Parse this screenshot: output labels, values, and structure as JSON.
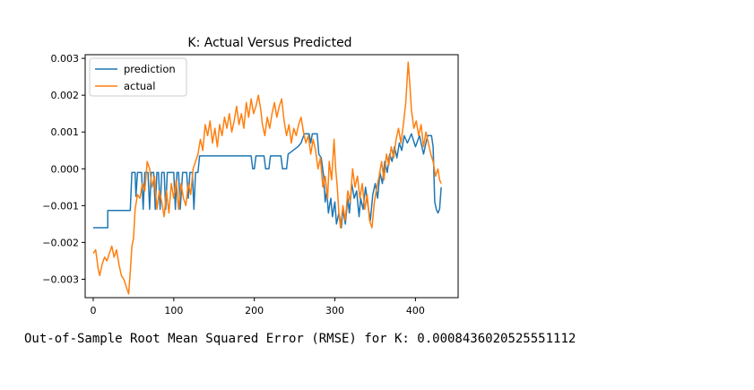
{
  "chart_data": {
    "type": "line",
    "title": "K: Actual Versus Predicted",
    "xlabel": "",
    "ylabel": "",
    "xlim": [
      -10,
      453
    ],
    "ylim": [
      -0.0035,
      0.0031
    ],
    "x_ticks": [
      0,
      100,
      200,
      300,
      400
    ],
    "x_tick_labels": [
      "0",
      "100",
      "200",
      "300",
      "400"
    ],
    "y_ticks": [
      -0.003,
      -0.002,
      -0.001,
      0.0,
      0.001,
      0.002,
      0.003
    ],
    "y_tick_labels": [
      "−0.003",
      "−0.002",
      "−0.001",
      "0.000",
      "0.001",
      "0.002",
      "0.003"
    ],
    "legend_position": "top-left",
    "grid": false,
    "series": [
      {
        "name": "prediction",
        "color": "#1f77b4",
        "points": [
          [
            0,
            -0.0016
          ],
          [
            18,
            -0.0016
          ],
          [
            18,
            -0.00113
          ],
          [
            46,
            -0.00113
          ],
          [
            48,
            -0.0001
          ],
          [
            52,
            -0.0001
          ],
          [
            53,
            -0.00075
          ],
          [
            55,
            -0.0001
          ],
          [
            60,
            -0.0001
          ],
          [
            62,
            -0.0011
          ],
          [
            64,
            -0.0001
          ],
          [
            68,
            -0.0001
          ],
          [
            70,
            -0.0011
          ],
          [
            72,
            -0.0001
          ],
          [
            75,
            -0.0001
          ],
          [
            77,
            -0.0011
          ],
          [
            79,
            -0.0001
          ],
          [
            81,
            -0.0001
          ],
          [
            83,
            -0.0011
          ],
          [
            85,
            -0.0001
          ],
          [
            88,
            -0.0001
          ],
          [
            90,
            -0.0011
          ],
          [
            92,
            -0.0001
          ],
          [
            100,
            -0.0001
          ],
          [
            102,
            -0.0011
          ],
          [
            104,
            -0.0001
          ],
          [
            106,
            -0.0001
          ],
          [
            108,
            -0.0011
          ],
          [
            111,
            -0.0001
          ],
          [
            116,
            -0.0001
          ],
          [
            118,
            -0.0008
          ],
          [
            120,
            -0.0001
          ],
          [
            123,
            -0.0001
          ],
          [
            125,
            -0.0011
          ],
          [
            127,
            -0.0001
          ],
          [
            130,
            -0.0001
          ],
          [
            132,
            0.00035
          ],
          [
            196,
            0.00035
          ],
          [
            198,
            0.0
          ],
          [
            200,
            0.0
          ],
          [
            202,
            0.00035
          ],
          [
            212,
            0.00035
          ],
          [
            214,
            0.0
          ],
          [
            218,
            0.0
          ],
          [
            220,
            0.00035
          ],
          [
            233,
            0.00035
          ],
          [
            235,
            0.0
          ],
          [
            240,
            0.0
          ],
          [
            242,
            0.0004
          ],
          [
            248,
            0.0005
          ],
          [
            254,
            0.0006
          ],
          [
            258,
            0.0007
          ],
          [
            262,
            0.00095
          ],
          [
            268,
            0.00095
          ],
          [
            270,
            0.0007
          ],
          [
            272,
            0.00095
          ],
          [
            278,
            0.00095
          ],
          [
            280,
            0.0004
          ],
          [
            283,
            0.0003
          ],
          [
            286,
            -0.0002
          ],
          [
            288,
            -0.0009
          ],
          [
            290,
            -0.0006
          ],
          [
            292,
            -0.0012
          ],
          [
            295,
            -0.0008
          ],
          [
            297,
            -0.0013
          ],
          [
            300,
            -0.0009
          ],
          [
            302,
            -0.0015
          ],
          [
            305,
            -0.0012
          ],
          [
            308,
            -0.0016
          ],
          [
            310,
            -0.0011
          ],
          [
            313,
            -0.0015
          ],
          [
            316,
            -0.0008
          ],
          [
            318,
            -0.0012
          ],
          [
            321,
            -0.0004
          ],
          [
            324,
            -0.0008
          ],
          [
            327,
            -0.0006
          ],
          [
            330,
            -0.0013
          ],
          [
            332,
            -0.0008
          ],
          [
            335,
            -0.0011
          ],
          [
            338,
            -0.0005
          ],
          [
            341,
            -0.001
          ],
          [
            344,
            -0.0014
          ],
          [
            347,
            -0.0007
          ],
          [
            350,
            -0.0004
          ],
          [
            353,
            -0.0008
          ],
          [
            356,
            -0.0001
          ],
          [
            359,
            -0.0004
          ],
          [
            362,
            0.0002
          ],
          [
            365,
            -0.0001
          ],
          [
            368,
            0.0004
          ],
          [
            371,
            0.0002
          ],
          [
            374,
            0.0006
          ],
          [
            377,
            0.0003
          ],
          [
            380,
            0.0007
          ],
          [
            383,
            0.0005
          ],
          [
            386,
            0.0009
          ],
          [
            390,
            0.0007
          ],
          [
            395,
            0.00095
          ],
          [
            400,
            0.0006
          ],
          [
            405,
            0.0009
          ],
          [
            410,
            0.0004
          ],
          [
            415,
            0.0009
          ],
          [
            420,
            0.0009
          ],
          [
            422,
            0.0006
          ],
          [
            424,
            -0.0009
          ],
          [
            426,
            -0.0011
          ],
          [
            428,
            -0.0012
          ],
          [
            430,
            -0.0011
          ],
          [
            432,
            -0.0005
          ]
        ]
      },
      {
        "name": "actual",
        "color": "#ff7f0e",
        "points": [
          [
            0,
            -0.0023
          ],
          [
            3,
            -0.0022
          ],
          [
            6,
            -0.0027
          ],
          [
            8,
            -0.0029
          ],
          [
            11,
            -0.0026
          ],
          [
            14,
            -0.0024
          ],
          [
            17,
            -0.0025
          ],
          [
            20,
            -0.0023
          ],
          [
            23,
            -0.0021
          ],
          [
            26,
            -0.0024
          ],
          [
            29,
            -0.0022
          ],
          [
            32,
            -0.0026
          ],
          [
            35,
            -0.0029
          ],
          [
            38,
            -0.003
          ],
          [
            41,
            -0.0032
          ],
          [
            44,
            -0.0034
          ],
          [
            46,
            -0.0028
          ],
          [
            48,
            -0.0021
          ],
          [
            50,
            -0.0019
          ],
          [
            52,
            -0.0011
          ],
          [
            55,
            -0.0007
          ],
          [
            58,
            -0.0008
          ],
          [
            61,
            -0.0004
          ],
          [
            64,
            -0.0006
          ],
          [
            67,
            0.0002
          ],
          [
            70,
            0.0
          ],
          [
            73,
            -0.0005
          ],
          [
            76,
            -0.0002
          ],
          [
            79,
            -0.0011
          ],
          [
            82,
            -0.0006
          ],
          [
            85,
            -0.0009
          ],
          [
            88,
            -0.0013
          ],
          [
            91,
            -0.0006
          ],
          [
            94,
            -0.0012
          ],
          [
            97,
            -0.0004
          ],
          [
            100,
            -0.0008
          ],
          [
            103,
            -0.0003
          ],
          [
            106,
            -0.0011
          ],
          [
            109,
            -0.0004
          ],
          [
            112,
            -0.0008
          ],
          [
            115,
            -0.001
          ],
          [
            118,
            -0.0004
          ],
          [
            121,
            -0.0007
          ],
          [
            124,
            0.0
          ],
          [
            127,
            0.0002
          ],
          [
            130,
            0.0004
          ],
          [
            133,
            0.0008
          ],
          [
            136,
            0.0005
          ],
          [
            139,
            0.0012
          ],
          [
            142,
            0.0009
          ],
          [
            145,
            0.0013
          ],
          [
            148,
            0.0007
          ],
          [
            151,
            0.0011
          ],
          [
            154,
            0.0006
          ],
          [
            157,
            0.0012
          ],
          [
            160,
            0.0009
          ],
          [
            163,
            0.0014
          ],
          [
            166,
            0.0011
          ],
          [
            169,
            0.0015
          ],
          [
            172,
            0.001
          ],
          [
            175,
            0.0013
          ],
          [
            178,
            0.0017
          ],
          [
            181,
            0.0012
          ],
          [
            184,
            0.0015
          ],
          [
            187,
            0.0011
          ],
          [
            190,
            0.0018
          ],
          [
            193,
            0.0014
          ],
          [
            196,
            0.0019
          ],
          [
            199,
            0.0015
          ],
          [
            202,
            0.0017
          ],
          [
            205,
            0.002
          ],
          [
            208,
            0.0016
          ],
          [
            210,
            0.0012
          ],
          [
            213,
            0.0009
          ],
          [
            216,
            0.0014
          ],
          [
            219,
            0.0011
          ],
          [
            222,
            0.0015
          ],
          [
            225,
            0.0018
          ],
          [
            228,
            0.0014
          ],
          [
            231,
            0.0017
          ],
          [
            234,
            0.0019
          ],
          [
            237,
            0.0013
          ],
          [
            240,
            0.0009
          ],
          [
            243,
            0.0012
          ],
          [
            246,
            0.0007
          ],
          [
            249,
            0.0011
          ],
          [
            252,
            0.0009
          ],
          [
            255,
            0.0012
          ],
          [
            258,
            0.0014
          ],
          [
            261,
            0.001
          ],
          [
            264,
            0.0007
          ],
          [
            267,
            0.0009
          ],
          [
            270,
            0.0004
          ],
          [
            273,
            0.0008
          ],
          [
            276,
            0.0005
          ],
          [
            279,
            0.0
          ],
          [
            282,
            0.0003
          ],
          [
            285,
            -0.0005
          ],
          [
            288,
            -0.0002
          ],
          [
            291,
            -0.0008
          ],
          [
            293,
            0.0002
          ],
          [
            296,
            -0.0003
          ],
          [
            299,
            0.0008
          ],
          [
            301,
            0.0
          ],
          [
            303,
            -0.0005
          ],
          [
            305,
            -0.0012
          ],
          [
            307,
            -0.0016
          ],
          [
            310,
            -0.001
          ],
          [
            313,
            -0.0014
          ],
          [
            316,
            -0.0006
          ],
          [
            319,
            -0.0009
          ],
          [
            322,
            0.0
          ],
          [
            325,
            -0.0005
          ],
          [
            328,
            -0.0002
          ],
          [
            331,
            -0.0008
          ],
          [
            334,
            -0.0004
          ],
          [
            337,
            -0.0011
          ],
          [
            340,
            -0.0007
          ],
          [
            343,
            -0.0014
          ],
          [
            346,
            -0.0016
          ],
          [
            349,
            -0.0009
          ],
          [
            352,
            -0.0005
          ],
          [
            355,
            -0.0002
          ],
          [
            358,
            0.0002
          ],
          [
            361,
            -0.0003
          ],
          [
            364,
            0.0004
          ],
          [
            367,
            0.0001
          ],
          [
            370,
            0.0006
          ],
          [
            373,
            0.0003
          ],
          [
            376,
            0.0008
          ],
          [
            379,
            0.0011
          ],
          [
            382,
            0.0007
          ],
          [
            385,
            0.0012
          ],
          [
            388,
            0.0018
          ],
          [
            391,
            0.0029
          ],
          [
            393,
            0.0023
          ],
          [
            395,
            0.0016
          ],
          [
            398,
            0.0011
          ],
          [
            401,
            0.0013
          ],
          [
            404,
            0.0009
          ],
          [
            407,
            0.0012
          ],
          [
            410,
            0.0006
          ],
          [
            413,
            0.001
          ],
          [
            416,
            0.0007
          ],
          [
            419,
            0.0004
          ],
          [
            422,
            0.0002
          ],
          [
            425,
            -0.0002
          ],
          [
            428,
            0.0
          ],
          [
            430,
            -0.0003
          ],
          [
            432,
            -0.0004
          ]
        ]
      }
    ]
  },
  "rmse": {
    "text": "Out-of-Sample Root Mean Squared Error (RMSE) for K: 0.0008436020525551112"
  }
}
